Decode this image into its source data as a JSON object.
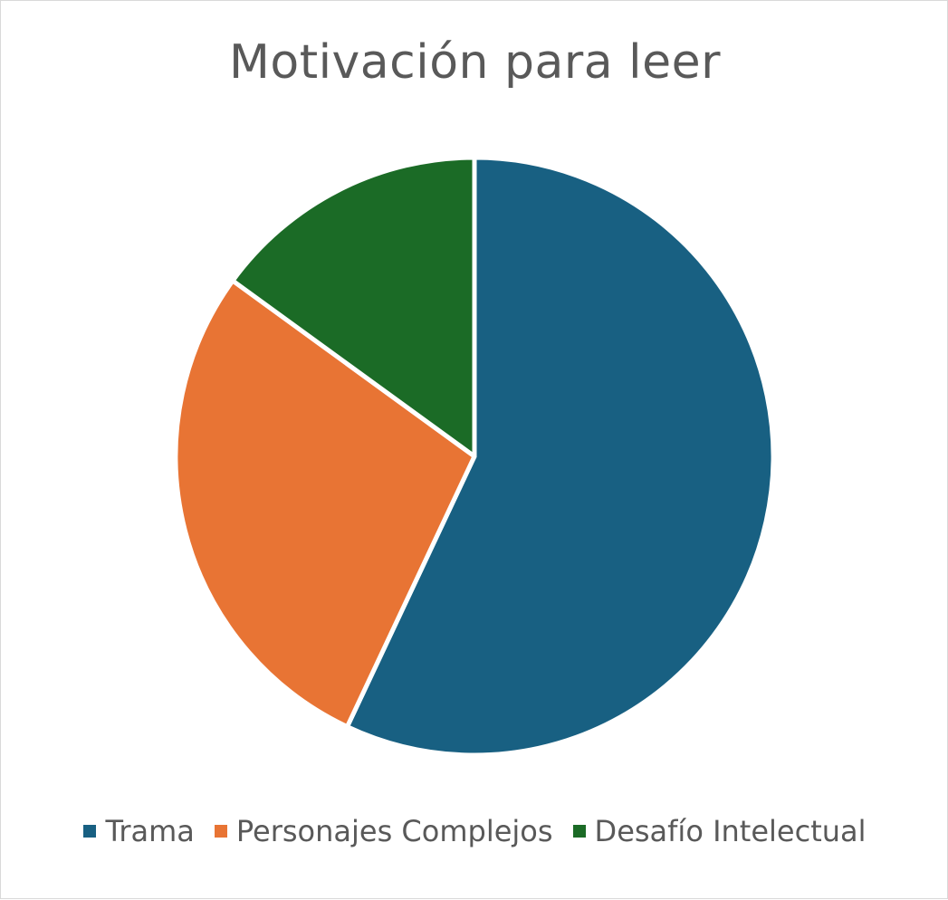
{
  "chart_data": {
    "type": "pie",
    "title": "Motivación para leer",
    "categories": [
      "Trama",
      "Personajes Complejos",
      "Desafío Intelectual"
    ],
    "values": [
      57,
      28,
      15
    ],
    "colors": [
      "#186082",
      "#E87434",
      "#1B6B26"
    ],
    "legend_position": "bottom",
    "start_angle_deg": 0,
    "direction": "clockwise"
  }
}
